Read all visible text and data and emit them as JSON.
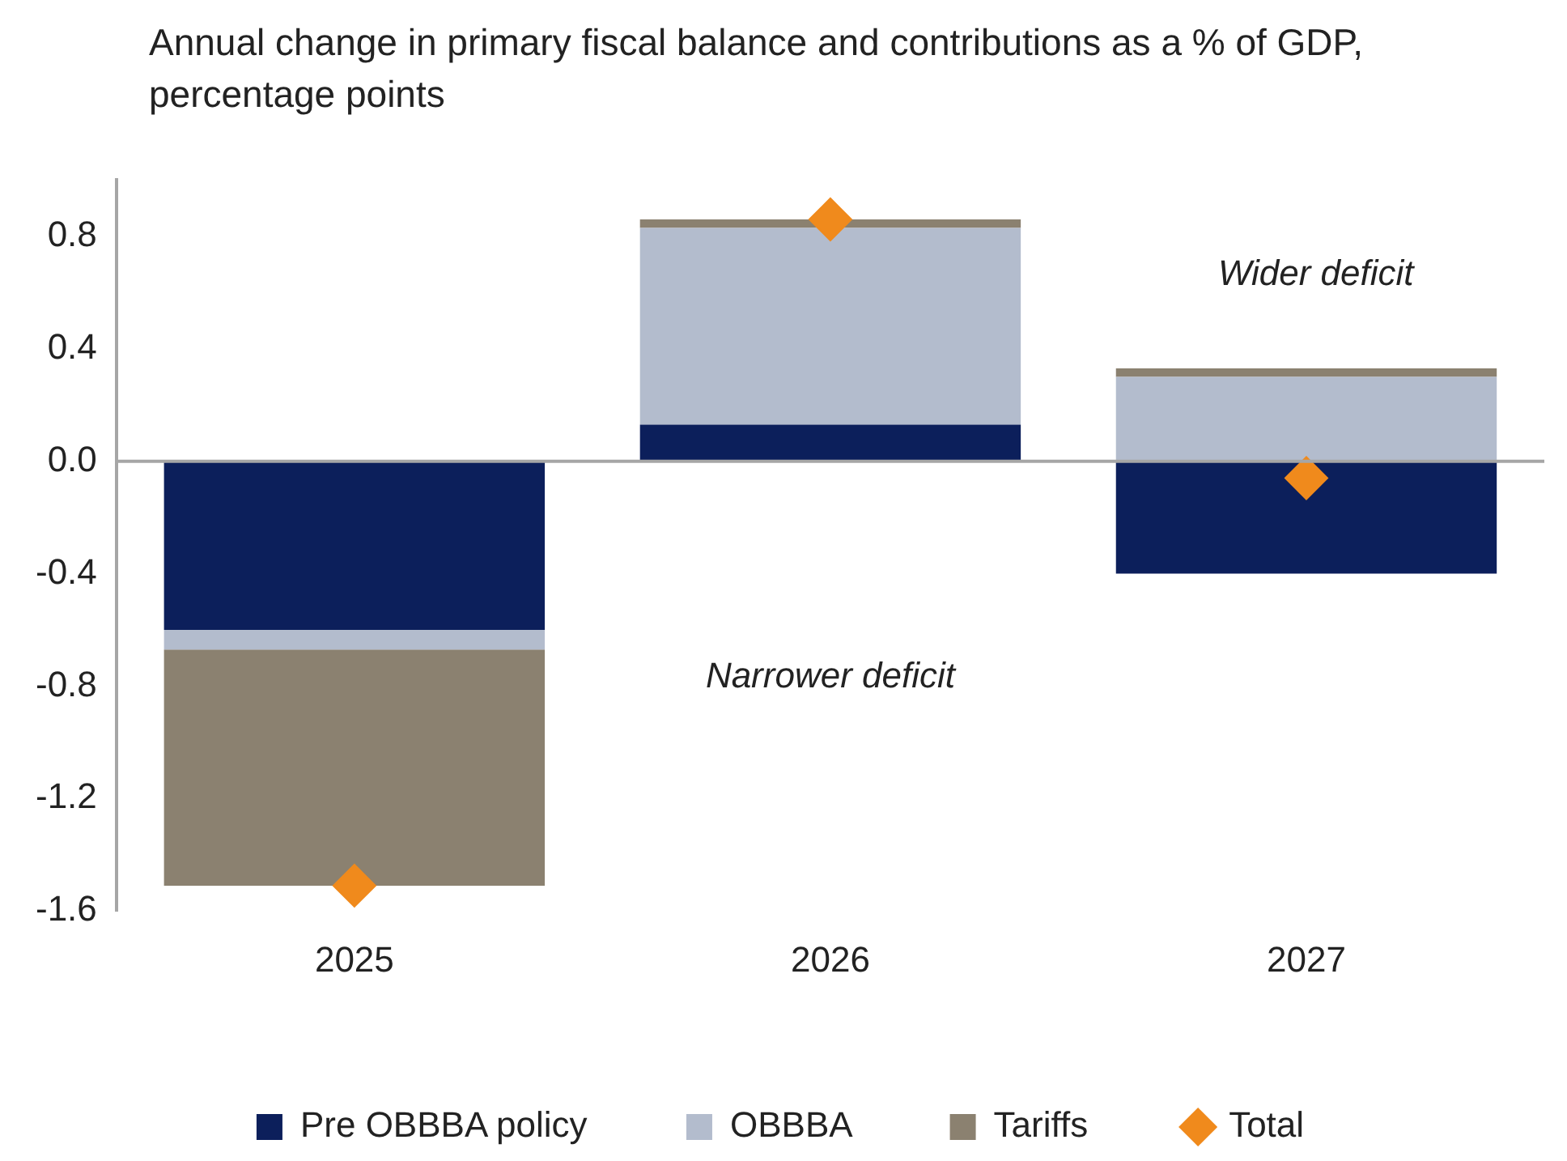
{
  "chart_data": {
    "type": "bar",
    "title": "Annual change in primary fiscal balance and contributions as a % of GDP, percentage points",
    "categories": [
      "2025",
      "2026",
      "2027"
    ],
    "stacked": true,
    "series": [
      {
        "name": "Pre OBBBA policy",
        "color": "#0c1f5b",
        "values": [
          -0.6,
          0.13,
          -0.4
        ]
      },
      {
        "name": "OBBBA",
        "color": "#b3bccd",
        "values": [
          -0.07,
          0.7,
          0.3
        ]
      },
      {
        "name": "Tariffs",
        "color": "#8b8170",
        "values": [
          -0.84,
          0.03,
          0.03
        ]
      },
      {
        "name": "Total",
        "type": "scatter",
        "color": "#f08a1c",
        "values": [
          -1.51,
          0.86,
          -0.06
        ]
      }
    ],
    "marker": "diamond",
    "ylim": [
      -1.6,
      1.0
    ],
    "yticks": [
      -1.6,
      -1.2,
      -0.8,
      -0.4,
      {
        "value": 0,
        "label": "0.0"
      },
      0.4,
      0.8
    ],
    "ref_lines": [
      {
        "axis": "y",
        "value": 0,
        "color": "#a6a6a6"
      }
    ],
    "annotations": [
      "Wider deficit",
      "Narrower deficit"
    ],
    "grid": false,
    "legend": "bottom"
  }
}
